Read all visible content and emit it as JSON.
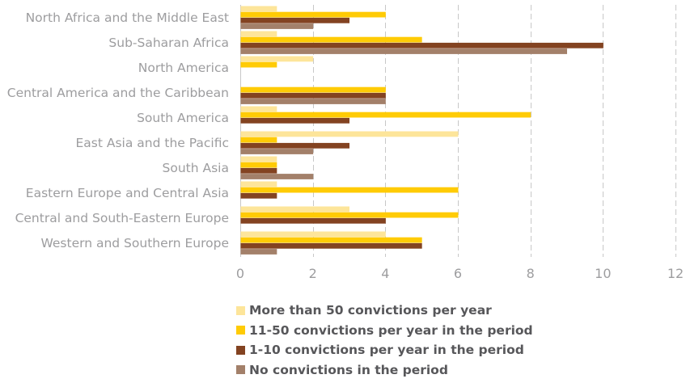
{
  "chart_data": {
    "type": "bar",
    "orientation": "horizontal",
    "title": "",
    "xlabel": "",
    "ylabel": "",
    "xlim": [
      0,
      12
    ],
    "xticks": [
      0,
      2,
      4,
      6,
      8,
      10,
      12
    ],
    "grid": true,
    "legend_position": "bottom",
    "categories": [
      "North Africa and the Middle East",
      "Sub-Saharan Africa",
      "North America",
      "Central America and the Caribbean",
      "South America",
      "East Asia and the Pacific",
      "South Asia",
      "Eastern Europe and Central Asia",
      "Central and South-Eastern Europe",
      "Western and Southern Europe"
    ],
    "series": [
      {
        "name": "More than 50 convictions per year",
        "color": "#fde59a",
        "values": [
          1,
          1,
          2,
          0,
          1,
          6,
          1,
          1,
          3,
          4
        ]
      },
      {
        "name": "11-50 convictions per year in the period",
        "color": "#ffcb05",
        "values": [
          4,
          5,
          1,
          4,
          8,
          1,
          1,
          6,
          6,
          5
        ]
      },
      {
        "name": "1-10 convictions per year in the period",
        "color": "#834321",
        "values": [
          3,
          10,
          0,
          4,
          3,
          3,
          1,
          1,
          4,
          5
        ]
      },
      {
        "name": "No convictions in the period",
        "color": "#a3806a",
        "values": [
          2,
          9,
          0,
          4,
          0,
          2,
          2,
          0,
          0,
          1
        ]
      }
    ]
  }
}
